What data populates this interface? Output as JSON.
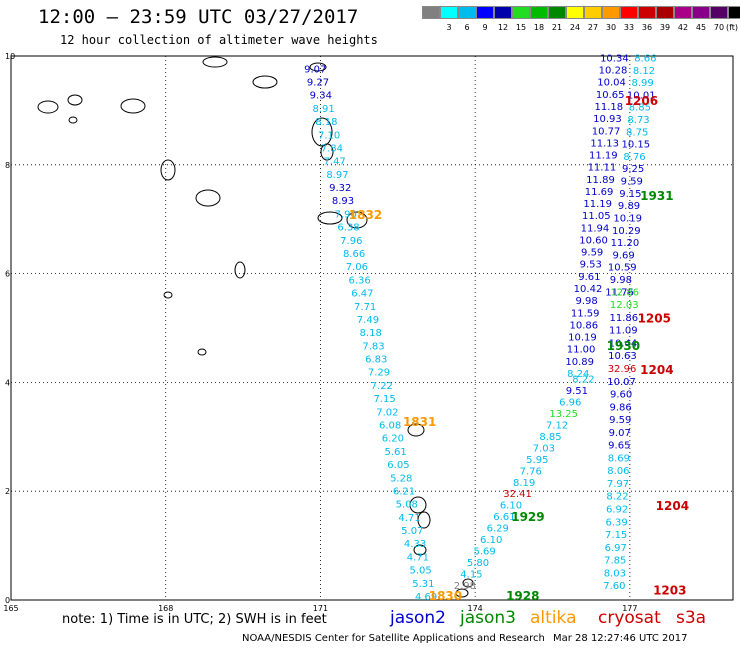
{
  "title": "12:00 — 23:59 UTC 03/27/2017",
  "subtitle": "12 hour collection of altimeter wave heights",
  "footer": {
    "note": "note:  1) Time is in UTC; 2) SWH is in feet",
    "credit": "NOAA/NESDIS Center for Satellite Applications and Research",
    "timestamp": "Mar 28 12:27:46 UTC 2017"
  },
  "missions": [
    {
      "label": "jason2",
      "color": "#0000cc"
    },
    {
      "label": "jason3",
      "color": "#008800"
    },
    {
      "label": "altika",
      "color": "#ff9900"
    },
    {
      "label": "cryosat",
      "color": "#cc0000"
    },
    {
      "label": "s3a",
      "color": "#cc0000"
    }
  ],
  "color_scale": {
    "unit": "(ft)",
    "colors": [
      "#808080",
      "#00ffff",
      "#00bbee",
      "#0000ff",
      "#0000aa",
      "#22dd22",
      "#00bb00",
      "#008800",
      "#ffff00",
      "#ffcc00",
      "#ff9900",
      "#ff0000",
      "#cc0000",
      "#aa0000",
      "#aa0088",
      "#880088",
      "#550066",
      "#000000"
    ],
    "labels": [
      "3",
      "6",
      "9",
      "12",
      "15",
      "18",
      "21",
      "24",
      "27",
      "30",
      "33",
      "36",
      "39",
      "42",
      "45",
      "70"
    ]
  },
  "map": {
    "lon_ticks": [
      "165",
      "168",
      "171",
      "174",
      "177"
    ],
    "lat_ticks": [
      "0",
      "2",
      "4",
      "6",
      "8",
      "10"
    ],
    "lon_range": [
      165,
      179
    ],
    "lat_range": [
      0,
      10
    ],
    "grid_lons": [
      168,
      171,
      174,
      177
    ],
    "grid_lats": [
      2,
      4,
      6,
      8
    ]
  },
  "time_labels": [
    {
      "text": "1832",
      "lon": 171.55,
      "lat": 7.0,
      "color": "#ff9900"
    },
    {
      "text": "1831",
      "lon": 172.6,
      "lat": 3.2,
      "color": "#ff9900"
    },
    {
      "text": "1830",
      "lon": 173.1,
      "lat": 0.0,
      "color": "#ff9900"
    },
    {
      "text": "1929",
      "lon": 174.7,
      "lat": 1.45,
      "color": "#008800"
    },
    {
      "text": "1928",
      "lon": 174.6,
      "lat": 0.0,
      "color": "#008800"
    },
    {
      "text": "1930",
      "lon": 176.55,
      "lat": 4.6,
      "color": "#008800"
    },
    {
      "text": "1931",
      "lon": 177.2,
      "lat": 7.35,
      "color": "#008800"
    },
    {
      "text": "1206",
      "lon": 176.9,
      "lat": 9.1,
      "color": "#cc0000"
    },
    {
      "text": "1205",
      "lon": 177.15,
      "lat": 5.1,
      "color": "#cc0000"
    },
    {
      "text": "1204",
      "lon": 177.2,
      "lat": 4.15,
      "color": "#cc0000"
    },
    {
      "text": "1204",
      "lon": 177.5,
      "lat": 1.65,
      "color": "#cc0000"
    },
    {
      "text": "1203",
      "lon": 177.45,
      "lat": 0.1,
      "color": "#cc0000"
    }
  ],
  "tracks": [
    {
      "name": "altika-track",
      "lon_start": 170.9,
      "lat_start": 9.7,
      "lon_end": 173.05,
      "lat_end": 0.0,
      "values": [
        {
          "v": "9.07",
          "c": "#0000cc"
        },
        {
          "v": "9.27",
          "c": "#0000cc"
        },
        {
          "v": "9.34",
          "c": "#0000cc"
        },
        {
          "v": "8.91",
          "c": "#00bbee"
        },
        {
          "v": "8.18",
          "c": "#00bbee"
        },
        {
          "v": "7.10",
          "c": "#00bbee"
        },
        {
          "v": "7.84",
          "c": "#00bbee"
        },
        {
          "v": "7.47",
          "c": "#00bbee"
        },
        {
          "v": "8.97",
          "c": "#00bbee"
        },
        {
          "v": "9.32",
          "c": "#0000cc"
        },
        {
          "v": "8.93",
          "c": "#0000cc"
        },
        {
          "v": "7.90",
          "c": "#00bbee"
        },
        {
          "v": "6.38",
          "c": "#00bbee"
        },
        {
          "v": "7.96",
          "c": "#00bbee"
        },
        {
          "v": "8.66",
          "c": "#00bbee"
        },
        {
          "v": "7.06",
          "c": "#00bbee"
        },
        {
          "v": "6.36",
          "c": "#00bbee"
        },
        {
          "v": "6.47",
          "c": "#00bbee"
        },
        {
          "v": "7.71",
          "c": "#00bbee"
        },
        {
          "v": "7.49",
          "c": "#00bbee"
        },
        {
          "v": "8.18",
          "c": "#00bbee"
        },
        {
          "v": "7.83",
          "c": "#00bbee"
        },
        {
          "v": "6.83",
          "c": "#00bbee"
        },
        {
          "v": "7.29",
          "c": "#00bbee"
        },
        {
          "v": "7.22",
          "c": "#00bbee"
        },
        {
          "v": "7.15",
          "c": "#00bbee"
        },
        {
          "v": "7.02",
          "c": "#00bbee"
        },
        {
          "v": "6.08",
          "c": "#00bbee"
        },
        {
          "v": "6.20",
          "c": "#00bbee"
        },
        {
          "v": "5.61",
          "c": "#00bbee"
        },
        {
          "v": "6.05",
          "c": "#00bbee"
        },
        {
          "v": "5.28",
          "c": "#00bbee"
        },
        {
          "v": "6.21",
          "c": "#00bbee"
        },
        {
          "v": "5.08",
          "c": "#00bbee"
        },
        {
          "v": "4.71",
          "c": "#00bbee"
        },
        {
          "v": "5.07",
          "c": "#00bbee"
        },
        {
          "v": "4.33",
          "c": "#00bbee"
        },
        {
          "v": "4.71",
          "c": "#00bbee"
        },
        {
          "v": "5.05",
          "c": "#00bbee"
        },
        {
          "v": "5.31",
          "c": "#00bbee"
        },
        {
          "v": "4.69",
          "c": "#00bbee"
        }
      ]
    },
    {
      "name": "jason3-track",
      "lon_start": 176.1,
      "lat_start": 4.0,
      "lon_end": 173.8,
      "lat_end": 0.2,
      "values": [
        {
          "v": "8.22",
          "c": "#00bbee"
        },
        {
          "v": "9.51",
          "c": "#0000cc"
        },
        {
          "v": "6.96",
          "c": "#00bbee"
        },
        {
          "v": "13.25",
          "c": "#22dd22"
        },
        {
          "v": "7.12",
          "c": "#00bbee"
        },
        {
          "v": "8.85",
          "c": "#00bbee"
        },
        {
          "v": "7.03",
          "c": "#00bbee"
        },
        {
          "v": "5.95",
          "c": "#00bbee"
        },
        {
          "v": "7.76",
          "c": "#00bbee"
        },
        {
          "v": "8.19",
          "c": "#00bbee"
        },
        {
          "v": "32.41",
          "c": "#cc0000"
        },
        {
          "v": "6.10",
          "c": "#00bbee"
        },
        {
          "v": "6.61",
          "c": "#00bbee"
        },
        {
          "v": "6.29",
          "c": "#00bbee"
        },
        {
          "v": "6.10",
          "c": "#00bbee"
        },
        {
          "v": "5.69",
          "c": "#00bbee"
        },
        {
          "v": "5.80",
          "c": "#00bbee"
        },
        {
          "v": "4.15",
          "c": "#00bbee"
        },
        {
          "v": "2.98",
          "c": "#808080"
        }
      ]
    },
    {
      "name": "jason2-track",
      "lon_start": 176.7,
      "lat_start": 9.9,
      "lon_end": 176.0,
      "lat_end": 4.1,
      "values": [
        {
          "v": "10.34",
          "c": "#0000cc"
        },
        {
          "v": "10.28",
          "c": "#0000cc"
        },
        {
          "v": "10.04",
          "c": "#0000cc"
        },
        {
          "v": "10.65",
          "c": "#0000cc"
        },
        {
          "v": "11.18",
          "c": "#0000cc"
        },
        {
          "v": "10.93",
          "c": "#0000cc"
        },
        {
          "v": "10.77",
          "c": "#0000cc"
        },
        {
          "v": "11.13",
          "c": "#0000cc"
        },
        {
          "v": "11.19",
          "c": "#0000cc"
        },
        {
          "v": "11.11",
          "c": "#0000cc"
        },
        {
          "v": "11.89",
          "c": "#0000cc"
        },
        {
          "v": "11.69",
          "c": "#0000cc"
        },
        {
          "v": "11.19",
          "c": "#0000cc"
        },
        {
          "v": "11.05",
          "c": "#0000cc"
        },
        {
          "v": "11.94",
          "c": "#0000cc"
        },
        {
          "v": "10.60",
          "c": "#0000cc"
        },
        {
          "v": "9.59",
          "c": "#0000cc"
        },
        {
          "v": "9.53",
          "c": "#0000cc"
        },
        {
          "v": "9.61",
          "c": "#0000cc"
        },
        {
          "v": "10.42",
          "c": "#0000cc"
        },
        {
          "v": "9.98",
          "c": "#0000cc"
        },
        {
          "v": "11.59",
          "c": "#0000cc"
        },
        {
          "v": "10.86",
          "c": "#0000cc"
        },
        {
          "v": "10.19",
          "c": "#0000cc"
        },
        {
          "v": "11.00",
          "c": "#0000cc"
        },
        {
          "v": "10.89",
          "c": "#0000cc"
        },
        {
          "v": "8.24",
          "c": "#00bbee"
        }
      ]
    },
    {
      "name": "s3a-track",
      "lon_start": 177.3,
      "lat_start": 9.9,
      "lon_end": 176.8,
      "lat_end": 5.6,
      "values": [
        {
          "v": "8.66",
          "c": "#00bbee"
        },
        {
          "v": "8.12",
          "c": "#00bbee"
        },
        {
          "v": "8.99",
          "c": "#00bbee"
        },
        {
          "v": "10.01",
          "c": "#0000cc"
        },
        {
          "v": "8.85",
          "c": "#00bbee"
        },
        {
          "v": "8.73",
          "c": "#00bbee"
        },
        {
          "v": "8.75",
          "c": "#00bbee"
        },
        {
          "v": "10.15",
          "c": "#0000cc"
        },
        {
          "v": "8.76",
          "c": "#00bbee"
        },
        {
          "v": "9.25",
          "c": "#0000cc"
        },
        {
          "v": "9.59",
          "c": "#0000cc"
        },
        {
          "v": "9.15",
          "c": "#0000cc"
        },
        {
          "v": "9.89",
          "c": "#0000cc"
        },
        {
          "v": "10.19",
          "c": "#0000cc"
        },
        {
          "v": "10.29",
          "c": "#0000cc"
        },
        {
          "v": "11.20",
          "c": "#0000cc"
        },
        {
          "v": "9.69",
          "c": "#0000cc"
        },
        {
          "v": "10.59",
          "c": "#0000cc"
        },
        {
          "v": "9.98",
          "c": "#0000cc"
        },
        {
          "v": "11.76",
          "c": "#0000cc"
        }
      ]
    },
    {
      "name": "cryosat-track",
      "lon_start": 176.9,
      "lat_start": 5.6,
      "lon_end": 176.7,
      "lat_end": 0.2,
      "values": [
        {
          "v": "12.86",
          "c": "#22dd22"
        },
        {
          "v": "12.03",
          "c": "#22dd22"
        },
        {
          "v": "11.86",
          "c": "#0000cc"
        },
        {
          "v": "11.09",
          "c": "#0000cc"
        },
        {
          "v": "10.44",
          "c": "#0000cc"
        },
        {
          "v": "10.63",
          "c": "#0000cc"
        },
        {
          "v": "32.96",
          "c": "#cc0000"
        },
        {
          "v": "10.07",
          "c": "#0000cc"
        },
        {
          "v": "9.60",
          "c": "#0000cc"
        },
        {
          "v": "9.86",
          "c": "#0000cc"
        },
        {
          "v": "9.59",
          "c": "#0000cc"
        },
        {
          "v": "9.07",
          "c": "#0000cc"
        },
        {
          "v": "9.65",
          "c": "#0000cc"
        },
        {
          "v": "8.69",
          "c": "#00bbee"
        },
        {
          "v": "8.06",
          "c": "#00bbee"
        },
        {
          "v": "7.97",
          "c": "#00bbee"
        },
        {
          "v": "8.22",
          "c": "#00bbee"
        },
        {
          "v": "6.92",
          "c": "#00bbee"
        },
        {
          "v": "6.39",
          "c": "#00bbee"
        },
        {
          "v": "7.15",
          "c": "#00bbee"
        },
        {
          "v": "6.97",
          "c": "#00bbee"
        },
        {
          "v": "7.85",
          "c": "#00bbee"
        },
        {
          "v": "8.03",
          "c": "#00bbee"
        },
        {
          "v": "7.60",
          "c": "#00bbee"
        }
      ]
    }
  ]
}
